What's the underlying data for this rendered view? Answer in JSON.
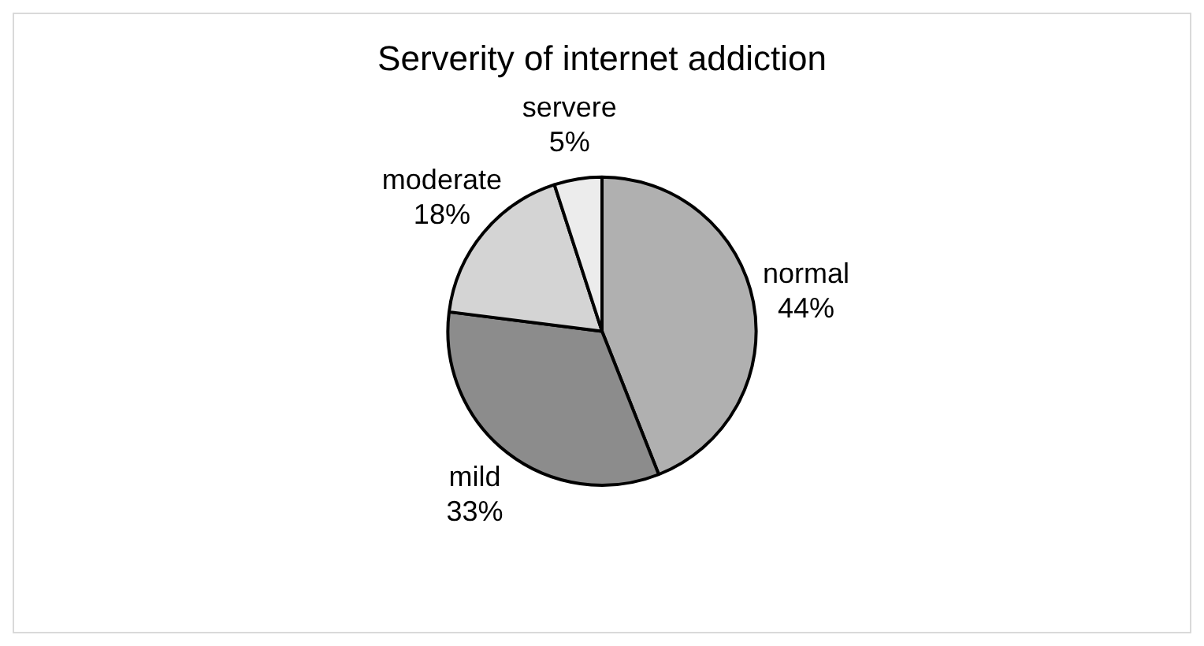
{
  "chart_data": {
    "type": "pie",
    "title": "Serverity of internet addiction",
    "categories": [
      "normal",
      "mild",
      "moderate",
      "servere"
    ],
    "values": [
      44,
      33,
      18,
      5
    ],
    "colors": [
      "#b0b0b0",
      "#8c8c8c",
      "#d4d4d4",
      "#ececec"
    ],
    "value_labels": [
      "44%",
      "33%",
      "18%",
      "5%"
    ],
    "legend": false
  }
}
